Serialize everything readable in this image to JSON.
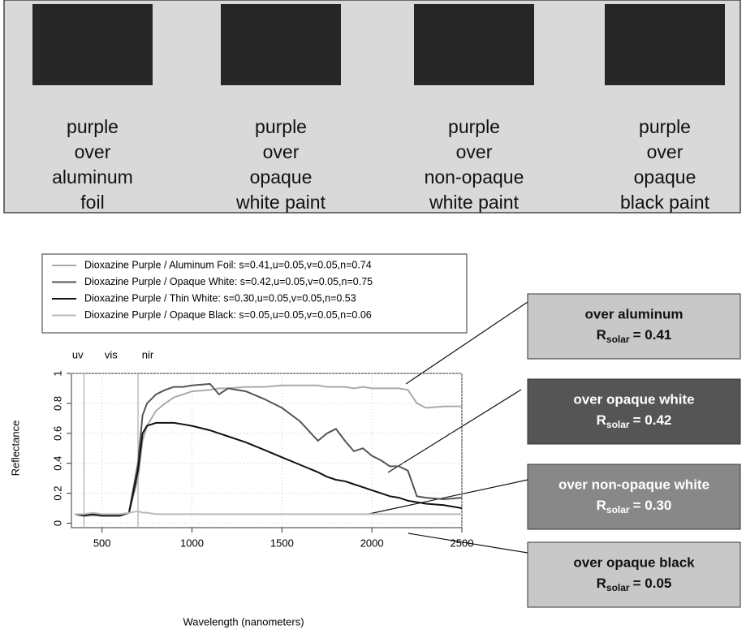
{
  "samples": [
    {
      "label": [
        "purple",
        "over",
        "aluminum",
        "foil"
      ]
    },
    {
      "label": [
        "purple",
        "over",
        "opaque",
        "white paint"
      ]
    },
    {
      "label": [
        "purple",
        "over",
        "non-opaque",
        "white paint"
      ]
    },
    {
      "label": [
        "purple",
        "over",
        "opaque",
        "black paint"
      ]
    }
  ],
  "chart_data": {
    "type": "line",
    "xlabel": "Wavelength (nanometers)",
    "ylabel": "Reflectance",
    "x": [
      350,
      400,
      450,
      500,
      550,
      600,
      650,
      700,
      725,
      750,
      800,
      850,
      900,
      950,
      1000,
      1100,
      1150,
      1200,
      1300,
      1400,
      1500,
      1600,
      1700,
      1750,
      1800,
      1850,
      1900,
      1950,
      2000,
      2050,
      2100,
      2150,
      2200,
      2250,
      2300,
      2400,
      2500
    ],
    "xlim": [
      330,
      2500
    ],
    "xticks": [
      500,
      1000,
      1500,
      2000,
      2500
    ],
    "ylim": [
      -0.03,
      1
    ],
    "yticks": [
      0,
      0.2,
      0.4,
      0.6,
      0.8,
      1
    ],
    "grid": true,
    "regions": {
      "labels": [
        "uv",
        "vis",
        "nir"
      ],
      "boundaries": [
        400,
        700
      ]
    },
    "series": [
      {
        "name": "Dioxazine Purple / Aluminum Foil: s=0.41,u=0.05,v=0.05,n=0.74",
        "color": "#aaaaaa",
        "values": [
          0.06,
          0.05,
          0.05,
          0.05,
          0.05,
          0.05,
          0.07,
          0.3,
          0.55,
          0.65,
          0.75,
          0.8,
          0.84,
          0.86,
          0.88,
          0.89,
          0.9,
          0.9,
          0.91,
          0.91,
          0.92,
          0.92,
          0.92,
          0.91,
          0.91,
          0.91,
          0.9,
          0.91,
          0.9,
          0.9,
          0.9,
          0.9,
          0.89,
          0.8,
          0.77,
          0.78,
          0.78
        ]
      },
      {
        "name": "Dioxazine Purple / Opaque White: s=0.42,u=0.05,v=0.05,n=0.75",
        "color": "#555555",
        "values": [
          0.06,
          0.05,
          0.06,
          0.05,
          0.05,
          0.05,
          0.07,
          0.4,
          0.72,
          0.8,
          0.86,
          0.89,
          0.91,
          0.91,
          0.92,
          0.93,
          0.86,
          0.9,
          0.88,
          0.83,
          0.77,
          0.68,
          0.55,
          0.6,
          0.63,
          0.55,
          0.48,
          0.5,
          0.45,
          0.42,
          0.38,
          0.38,
          0.35,
          0.18,
          0.17,
          0.16,
          0.17
        ]
      },
      {
        "name": "Dioxazine Purple / Thin White: s=0.30,u=0.05,v=0.05,n=0.53",
        "color": "#111111",
        "values": [
          0.06,
          0.05,
          0.06,
          0.05,
          0.05,
          0.05,
          0.07,
          0.35,
          0.6,
          0.65,
          0.67,
          0.67,
          0.67,
          0.66,
          0.65,
          0.62,
          0.6,
          0.58,
          0.54,
          0.49,
          0.44,
          0.39,
          0.34,
          0.31,
          0.29,
          0.28,
          0.26,
          0.24,
          0.22,
          0.2,
          0.18,
          0.17,
          0.15,
          0.14,
          0.13,
          0.12,
          0.1
        ]
      },
      {
        "name": "Dioxazine Purple / Opaque Black: s=0.05,u=0.05,v=0.05,n=0.06",
        "color": "#bbbbbb",
        "values": [
          0.06,
          0.06,
          0.07,
          0.06,
          0.06,
          0.06,
          0.07,
          0.08,
          0.07,
          0.07,
          0.06,
          0.06,
          0.06,
          0.06,
          0.06,
          0.06,
          0.06,
          0.06,
          0.06,
          0.06,
          0.06,
          0.06,
          0.06,
          0.06,
          0.06,
          0.06,
          0.06,
          0.06,
          0.06,
          0.06,
          0.06,
          0.06,
          0.06,
          0.06,
          0.06,
          0.06,
          0.06
        ]
      }
    ]
  },
  "callouts": [
    {
      "title": "over aluminum",
      "symbol": "R",
      "subscript": "solar",
      "text": "= 0.41"
    },
    {
      "title": "over opaque white",
      "symbol": "R",
      "subscript": "solar",
      "text": "= 0.42"
    },
    {
      "title": "over non-opaque white",
      "symbol": "R",
      "subscript": "solar",
      "text": "= 0.30"
    },
    {
      "title": "over opaque black",
      "symbol": "R",
      "subscript": "solar",
      "text": "= 0.05"
    }
  ]
}
